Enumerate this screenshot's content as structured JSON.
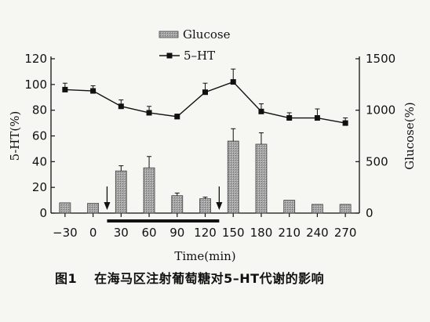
{
  "chart_data": {
    "type": "bar+line",
    "xlabel": "Time(min)",
    "x": [
      -30,
      0,
      30,
      60,
      90,
      120,
      150,
      180,
      210,
      240,
      270
    ],
    "x_tick_labels": [
      "−30",
      "0",
      "30",
      "60",
      "90",
      "120",
      "150",
      "180",
      "210",
      "240",
      "270"
    ],
    "y_left": {
      "label": "5-HT(%)",
      "range": [
        0,
        120
      ],
      "ticks": [
        0,
        20,
        40,
        60,
        80,
        100,
        120
      ]
    },
    "y_right": {
      "label": "Glucose(%)",
      "range": [
        0,
        1500
      ],
      "ticks": [
        0,
        500,
        1000,
        1500
      ]
    },
    "series": [
      {
        "name": "Glucose",
        "kind": "bar",
        "axis": "right",
        "values": [
          100,
          95,
          410,
          440,
          170,
          140,
          700,
          670,
          125,
          85,
          85
        ],
        "errors": [
          0,
          0,
          50,
          110,
          25,
          15,
          120,
          110,
          0,
          0,
          0
        ]
      },
      {
        "name": "5–HT",
        "kind": "line",
        "axis": "left",
        "values": [
          96,
          95,
          83,
          78,
          75,
          94,
          102,
          79,
          74,
          74,
          70
        ],
        "errors": [
          5,
          4,
          5,
          5,
          2,
          7,
          10,
          6,
          4,
          7,
          4
        ]
      }
    ],
    "annotations": {
      "arrows_at": [
        15,
        135
      ],
      "infusion_bar": [
        15,
        135
      ]
    },
    "legend": {
      "placement": "top-center"
    },
    "grid": false
  },
  "caption": {
    "figure_number": "图1",
    "text": "在海马区注射葡萄糖对5–HT代谢的影响"
  },
  "colors": {
    "bar_fill": "#9a9a9a",
    "line": "#111111",
    "background": "#f6f6f2"
  }
}
